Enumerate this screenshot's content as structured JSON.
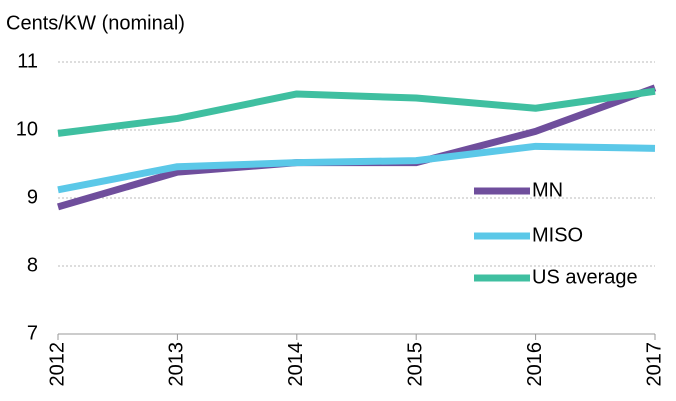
{
  "chart_data": {
    "type": "line",
    "y_label": "Cents/KW (nominal)",
    "x": [
      "2012",
      "2013",
      "2014",
      "2015",
      "2016",
      "2017"
    ],
    "series": [
      {
        "name": "MN",
        "color": "#6f4e9c",
        "values": [
          8.87,
          9.38,
          9.52,
          9.52,
          9.98,
          10.62
        ]
      },
      {
        "name": "MISO",
        "color": "#5bc8e8",
        "values": [
          9.12,
          9.46,
          9.52,
          9.55,
          9.76,
          9.73
        ]
      },
      {
        "name": "US average",
        "color": "#3fbfa0",
        "values": [
          9.95,
          10.17,
          10.53,
          10.47,
          10.32,
          10.57
        ]
      }
    ],
    "ylim": [
      7,
      11
    ],
    "yticks": [
      7,
      8,
      9,
      10,
      11
    ],
    "grid": true,
    "legend": "right"
  }
}
